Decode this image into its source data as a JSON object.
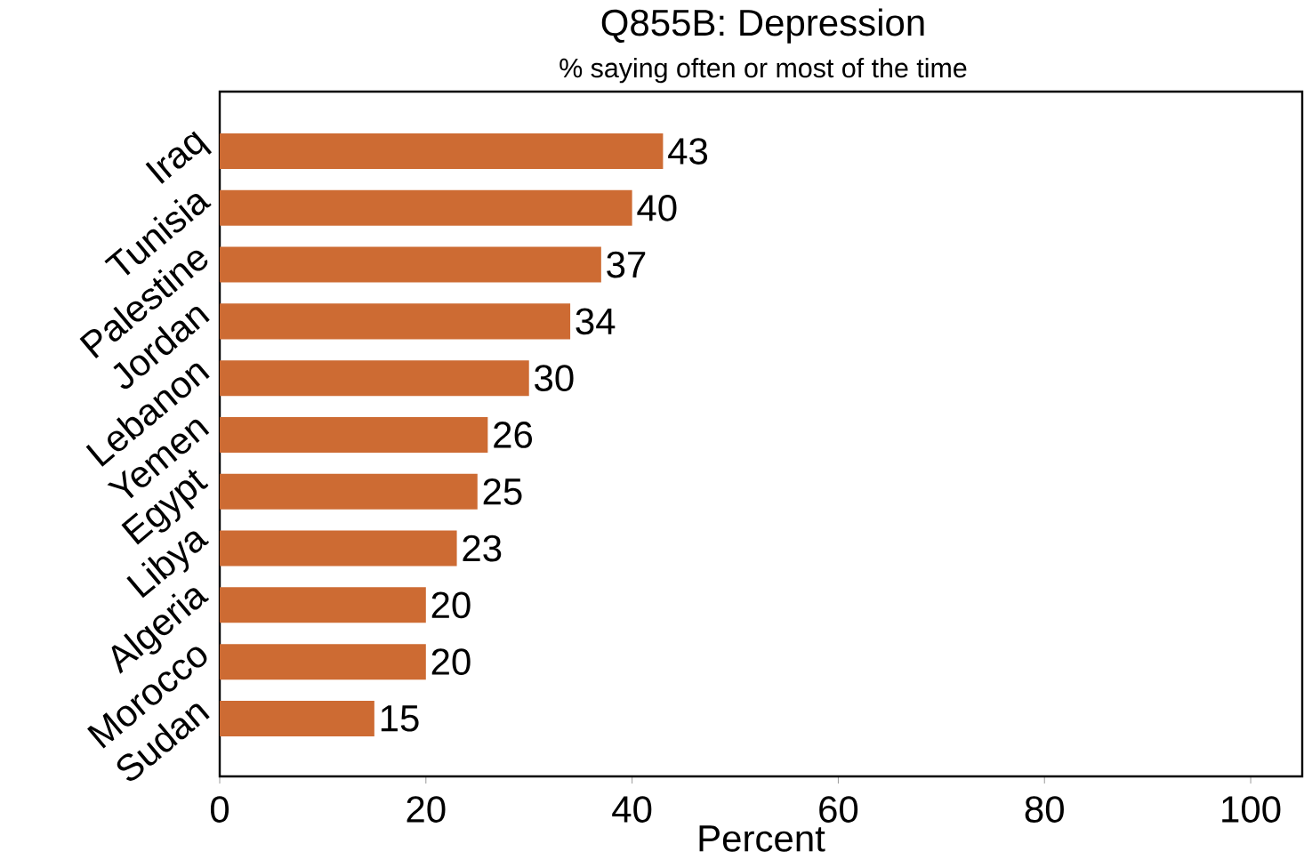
{
  "chart_data": {
    "type": "bar",
    "orientation": "horizontal",
    "title": "Q855B: Depression",
    "subtitle": "% saying often or most of the time",
    "xlabel": "Percent",
    "categories": [
      "Iraq",
      "Tunisia",
      "Palestine",
      "Jordan",
      "Lebanon",
      "Yemen",
      "Egypt",
      "Libya",
      "Algeria",
      "Morocco",
      "Sudan"
    ],
    "values": [
      43,
      40,
      37,
      34,
      30,
      26,
      25,
      23,
      20,
      20,
      15
    ],
    "color": "#cd6b33",
    "xlim": [
      0,
      105
    ],
    "xticks": [
      0,
      20,
      40,
      60,
      80,
      100
    ],
    "data_labels": true,
    "grid": false
  }
}
